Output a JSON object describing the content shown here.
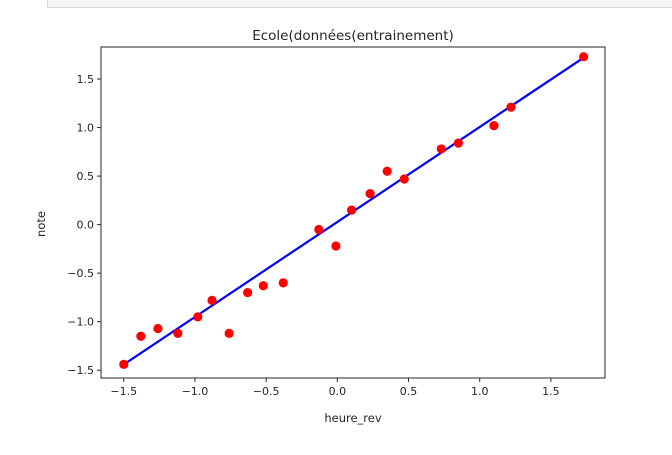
{
  "chart_data": {
    "type": "scatter",
    "title": "Ecole(données(entrainement)",
    "xlabel": "heure_rev",
    "ylabel": "note",
    "xlim": [
      -1.66,
      1.88
    ],
    "ylim": [
      -1.58,
      1.83
    ],
    "xticks": [
      -1.5,
      -1.0,
      -0.5,
      0.0,
      0.5,
      1.0,
      1.5
    ],
    "xtick_labels": [
      "−1.5",
      "−1.0",
      "−0.5",
      "0.0",
      "0.5",
      "1.0",
      "1.5"
    ],
    "yticks": [
      -1.5,
      -1.0,
      -0.5,
      0.0,
      0.5,
      1.0,
      1.5
    ],
    "ytick_labels": [
      "−1.5",
      "−1.0",
      "−0.5",
      "0.0",
      "0.5",
      "1.0",
      "1.5"
    ],
    "grid": false,
    "series": [
      {
        "kind": "points",
        "color": "#ff0000",
        "x": [
          -1.5,
          -1.38,
          -1.26,
          -1.12,
          -0.98,
          -0.88,
          -0.76,
          -0.63,
          -0.52,
          -0.38,
          -0.13,
          -0.01,
          0.1,
          0.23,
          0.35,
          0.47,
          0.73,
          0.85,
          1.1,
          1.22,
          1.73
        ],
        "y": [
          -1.44,
          -1.15,
          -1.07,
          -1.12,
          -0.95,
          -0.78,
          -1.12,
          -0.7,
          -0.63,
          -0.6,
          -0.05,
          -0.22,
          0.15,
          0.32,
          0.55,
          0.47,
          0.78,
          0.84,
          1.02,
          1.21,
          1.73
        ]
      },
      {
        "kind": "line",
        "color": "#0000ff",
        "x": [
          -1.5,
          1.73
        ],
        "y": [
          -1.44,
          1.72
        ]
      }
    ]
  }
}
